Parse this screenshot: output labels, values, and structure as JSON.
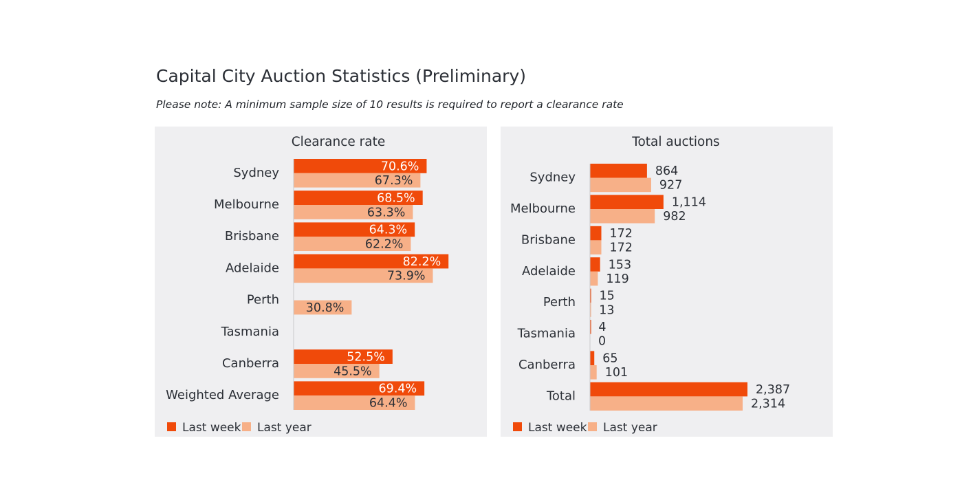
{
  "title": "Capital City Auction Statistics (Preliminary)",
  "note": "Please note: A minimum sample size of 10 results is required to report a clearance rate",
  "colors": {
    "last_week": "#f04a0a",
    "last_year": "#f7b088",
    "panel_bg": "#efeff1",
    "text": "#2b2f36"
  },
  "legend": {
    "last_week": "Last week",
    "last_year": "Last year"
  },
  "chart_data": [
    {
      "type": "bar",
      "orientation": "horizontal",
      "title": "Clearance rate",
      "categories": [
        "Sydney",
        "Melbourne",
        "Brisbane",
        "Adelaide",
        "Perth",
        "Tasmania",
        "Canberra",
        "Weighted Average"
      ],
      "series": [
        {
          "name": "Last week",
          "values": [
            70.6,
            68.5,
            64.3,
            82.2,
            null,
            null,
            52.5,
            69.4
          ],
          "labels": [
            "70.6%",
            "68.5%",
            "64.3%",
            "82.2%",
            "",
            "",
            "52.5%",
            "69.4%"
          ]
        },
        {
          "name": "Last year",
          "values": [
            67.3,
            63.3,
            62.2,
            73.9,
            30.8,
            null,
            45.5,
            64.4
          ],
          "labels": [
            "67.3%",
            "63.3%",
            "62.2%",
            "73.9%",
            "30.8%",
            "",
            "45.5%",
            "64.4%"
          ]
        }
      ],
      "xlim": [
        0,
        100
      ],
      "legend_position": "bottom-left"
    },
    {
      "type": "bar",
      "orientation": "horizontal",
      "title": "Total auctions",
      "categories": [
        "Sydney",
        "Melbourne",
        "Brisbane",
        "Adelaide",
        "Perth",
        "Tasmania",
        "Canberra",
        "Total"
      ],
      "series": [
        {
          "name": "Last week",
          "values": [
            864,
            1114,
            172,
            153,
            15,
            4,
            65,
            2387
          ],
          "labels": [
            "864",
            "1,114",
            "172",
            "153",
            "15",
            "4",
            "65",
            "2,387"
          ]
        },
        {
          "name": "Last year",
          "values": [
            927,
            982,
            172,
            119,
            13,
            0,
            101,
            2314
          ],
          "labels": [
            "927",
            "982",
            "172",
            "119",
            "13",
            "0",
            "101",
            "2,314"
          ]
        }
      ],
      "xlim": [
        0,
        2387
      ],
      "legend_position": "bottom-left"
    }
  ]
}
